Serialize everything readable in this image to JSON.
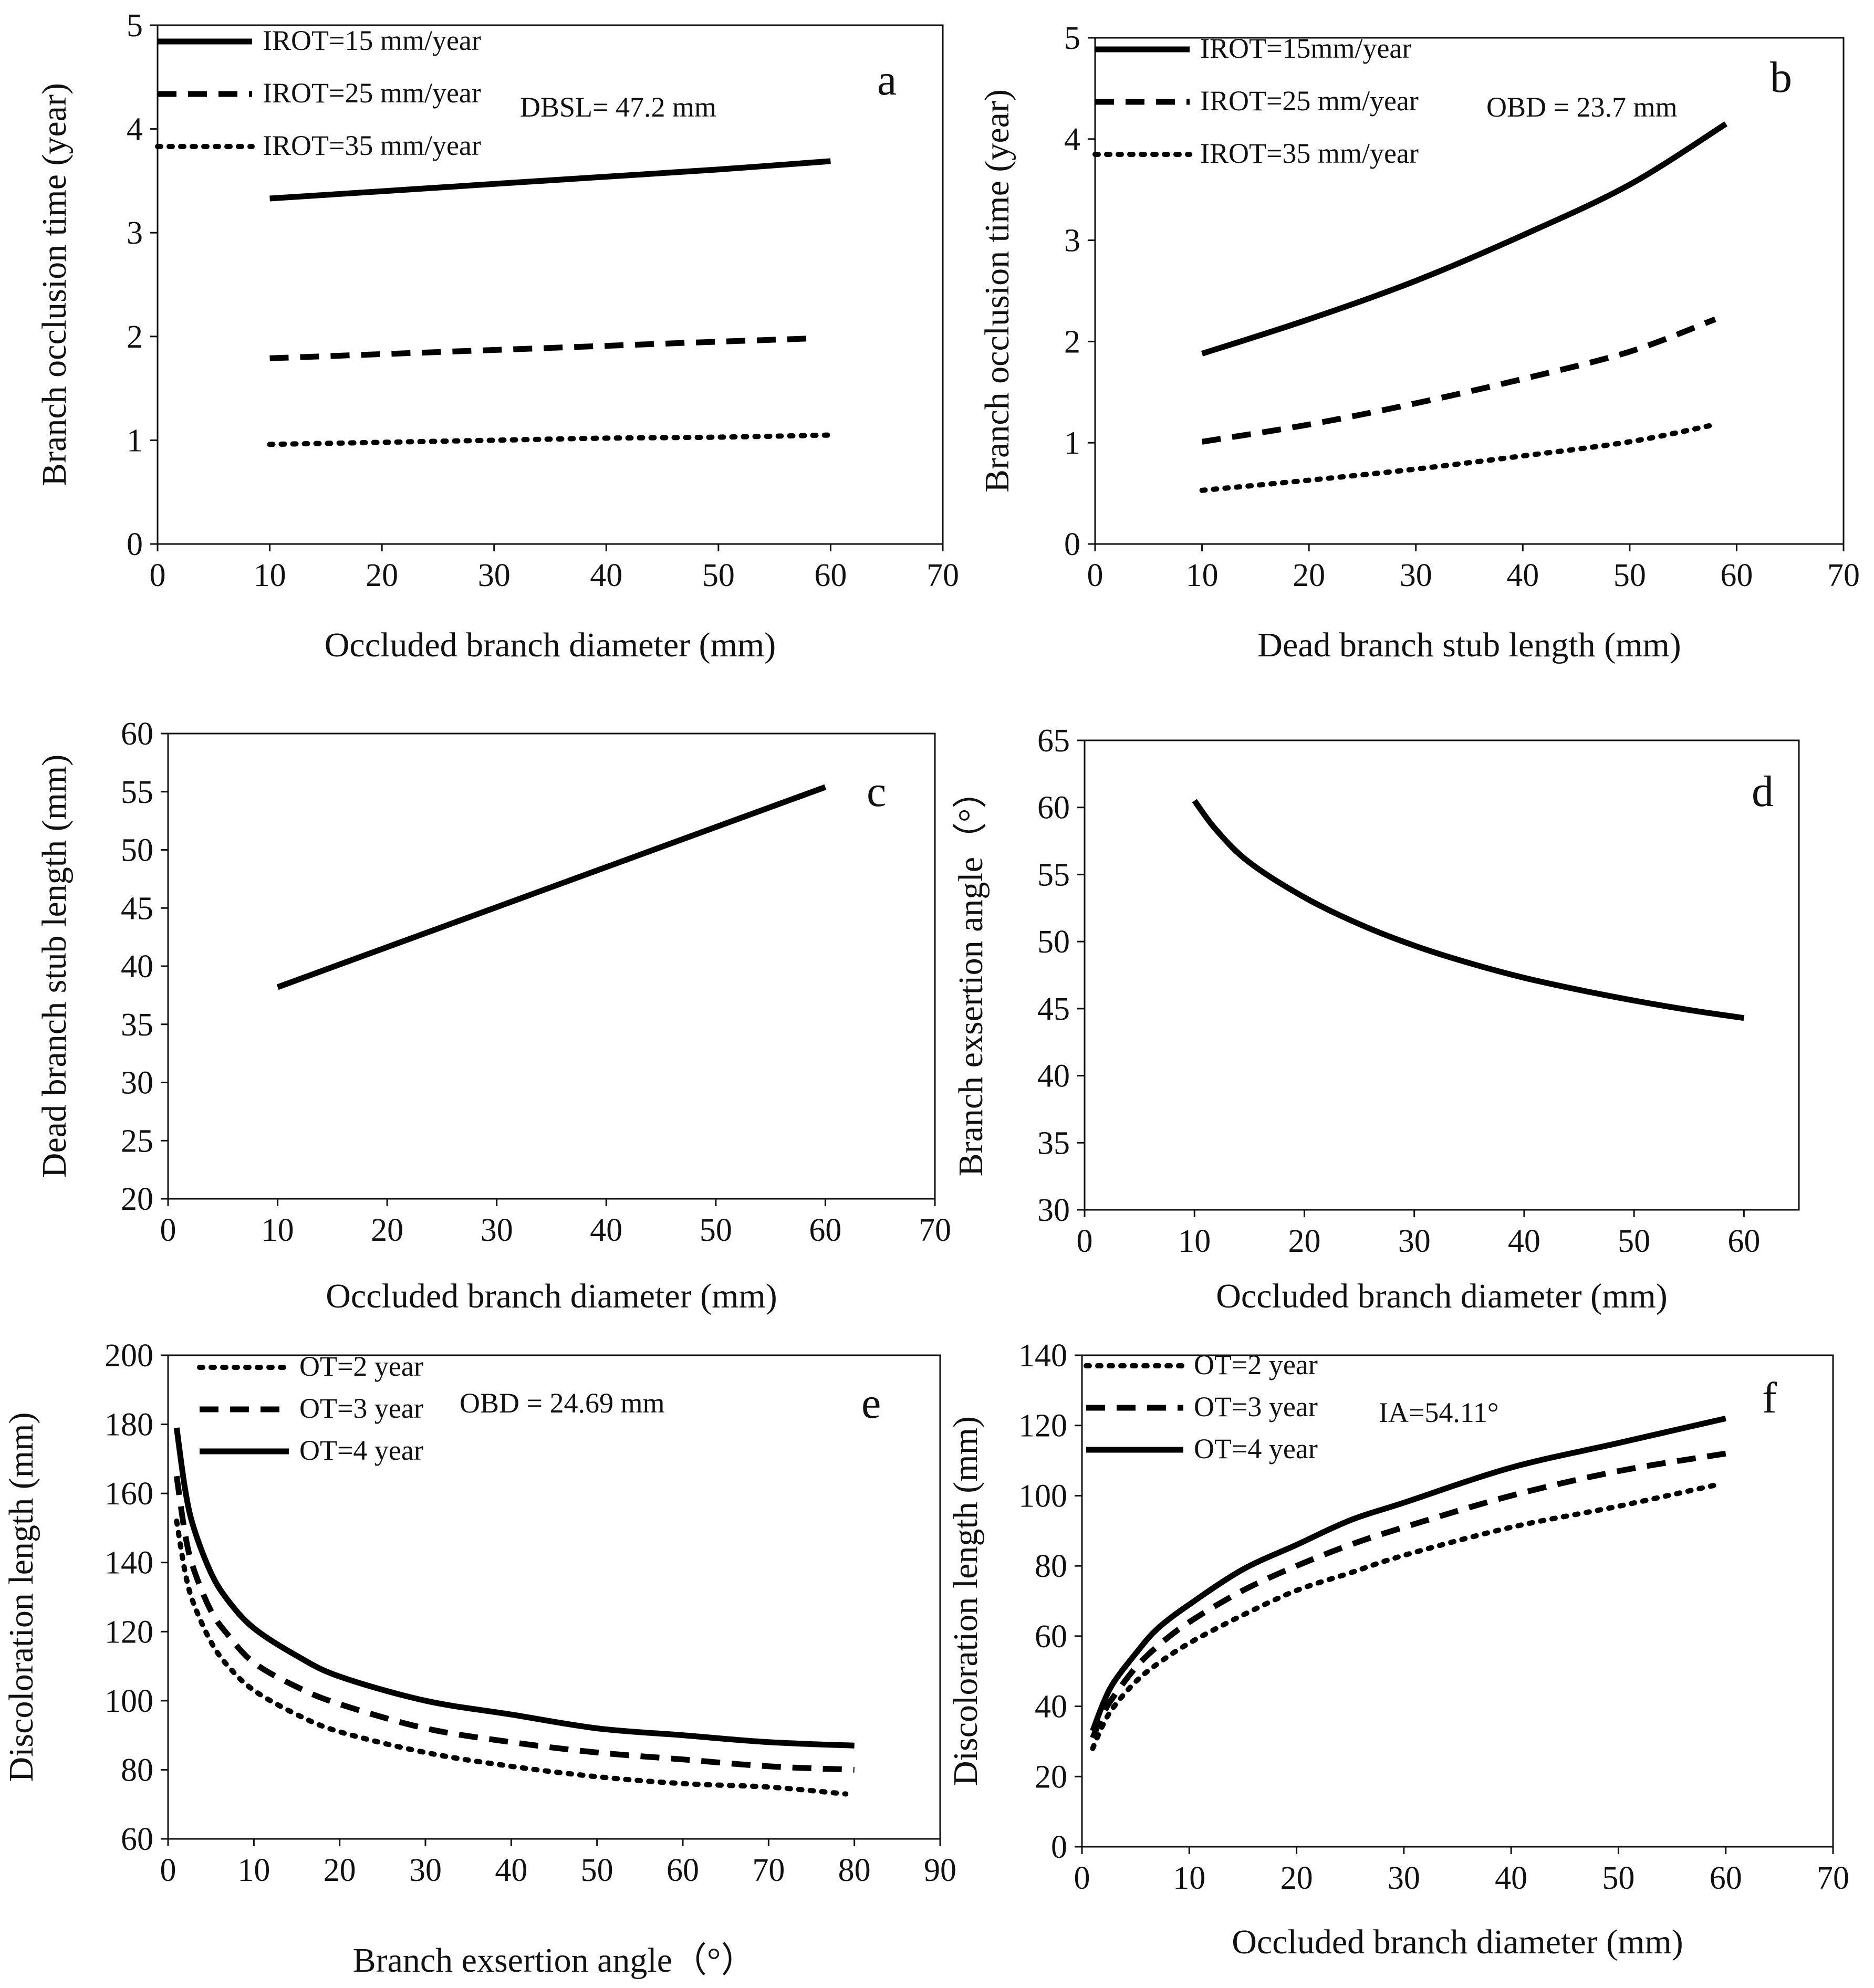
{
  "chart_data": [
    {
      "id": "a",
      "type": "line",
      "panel_label": "a",
      "xlabel": "Occluded branch diameter (mm)",
      "ylabel": "Branch occlusion time (year)",
      "xlim": [
        0,
        70
      ],
      "ylim": [
        0,
        5
      ],
      "xticks": [
        0,
        10,
        20,
        30,
        40,
        50,
        60,
        70
      ],
      "yticks": [
        0,
        1,
        2,
        3,
        4,
        5
      ],
      "annotation": "DBSL= 47.2 mm",
      "series": [
        {
          "name": "IROT=15 mm/year",
          "style": "solid",
          "x": [
            10,
            20,
            30,
            40,
            50,
            60
          ],
          "y": [
            3.33,
            3.4,
            3.47,
            3.54,
            3.61,
            3.69
          ]
        },
        {
          "name": "IROT=25 mm/year",
          "style": "dashed",
          "x": [
            10,
            20,
            30,
            40,
            50,
            58
          ],
          "y": [
            1.79,
            1.83,
            1.87,
            1.91,
            1.95,
            1.98
          ]
        },
        {
          "name": "IROT=35 mm/year",
          "style": "dotted",
          "x": [
            10,
            20,
            30,
            40,
            50,
            60
          ],
          "y": [
            0.96,
            0.98,
            1.0,
            1.02,
            1.03,
            1.05
          ]
        }
      ]
    },
    {
      "id": "b",
      "type": "line",
      "panel_label": "b",
      "xlabel": "Dead  branch stub length (mm)",
      "ylabel": "Branch occlusion time (year)",
      "xlim": [
        0,
        70
      ],
      "ylim": [
        0,
        5
      ],
      "xticks": [
        0,
        10,
        20,
        30,
        40,
        50,
        60,
        70
      ],
      "yticks": [
        0,
        1,
        2,
        3,
        4,
        5
      ],
      "annotation": "OBD = 23.7 mm",
      "series": [
        {
          "name": "IROT=15mm/year",
          "style": "solid",
          "x": [
            10,
            20,
            30,
            40,
            50,
            59
          ],
          "y": [
            1.88,
            2.22,
            2.6,
            3.05,
            3.55,
            4.15
          ]
        },
        {
          "name": "IROT=25 mm/year",
          "style": "dashed",
          "x": [
            10,
            20,
            30,
            40,
            50,
            58
          ],
          "y": [
            1.01,
            1.18,
            1.39,
            1.63,
            1.9,
            2.22
          ]
        },
        {
          "name": "IROT=35 mm/year",
          "style": "dotted",
          "x": [
            10,
            20,
            30,
            40,
            50,
            58
          ],
          "y": [
            0.53,
            0.63,
            0.74,
            0.87,
            1.01,
            1.18
          ]
        }
      ]
    },
    {
      "id": "c",
      "type": "line",
      "panel_label": "c",
      "xlabel": "Occluded  branch diameter (mm)",
      "ylabel": "Dead  branch stub length (mm)",
      "xlim": [
        0,
        70
      ],
      "ylim": [
        20,
        60
      ],
      "xticks": [
        0,
        10,
        20,
        30,
        40,
        50,
        60,
        70
      ],
      "yticks": [
        20,
        25,
        30,
        35,
        40,
        45,
        50,
        55,
        60
      ],
      "series": [
        {
          "name": "",
          "style": "solid",
          "x": [
            10,
            60
          ],
          "y": [
            38.2,
            55.4
          ]
        }
      ]
    },
    {
      "id": "d",
      "type": "line",
      "panel_label": "d",
      "xlabel": "Occluded  branch diameter (mm)",
      "ylabel": "Branch exsertion angle（°）",
      "xlim": [
        0,
        65
      ],
      "ylim": [
        30,
        65
      ],
      "xticks": [
        0,
        10,
        20,
        30,
        40,
        50,
        60
      ],
      "yticks": [
        30,
        35,
        40,
        45,
        50,
        55,
        60,
        65
      ],
      "series": [
        {
          "name": "",
          "style": "solid",
          "x": [
            10,
            12,
            15,
            20,
            25,
            30,
            35,
            40,
            45,
            50,
            55,
            60
          ],
          "y": [
            60.5,
            58.3,
            55.9,
            53.3,
            51.3,
            49.7,
            48.4,
            47.3,
            46.4,
            45.6,
            44.9,
            44.3
          ]
        }
      ]
    },
    {
      "id": "e",
      "type": "line",
      "panel_label": "e",
      "xlabel": "Branch exsertion angle（°）",
      "ylabel": "Discoloration length (mm)",
      "xlim": [
        0,
        90
      ],
      "ylim": [
        60,
        200
      ],
      "xticks": [
        0,
        10,
        20,
        30,
        40,
        50,
        60,
        70,
        80,
        90
      ],
      "yticks": [
        60,
        80,
        100,
        120,
        140,
        160,
        180,
        200
      ],
      "annotation": "OBD = 24.69 mm",
      "series": [
        {
          "name": "OT=2 year",
          "style": "dotted",
          "x": [
            1,
            2,
            3,
            5,
            7,
            10,
            15,
            20,
            30,
            40,
            50,
            60,
            70,
            79
          ],
          "y": [
            152,
            137,
            128,
            117,
            110,
            103,
            96,
            91,
            85,
            81,
            78,
            76,
            75,
            73
          ]
        },
        {
          "name": "OT=3 year",
          "style": "dashed",
          "x": [
            1,
            2,
            3,
            5,
            7,
            10,
            15,
            20,
            30,
            40,
            50,
            60,
            70,
            80
          ],
          "y": [
            165,
            148,
            138,
            126,
            119,
            111,
            104,
            99,
            92,
            88,
            85,
            83,
            81,
            80
          ]
        },
        {
          "name": "OT=4 year",
          "style": "solid",
          "x": [
            1,
            2,
            3,
            5,
            7,
            10,
            15,
            20,
            30,
            40,
            50,
            60,
            70,
            80
          ],
          "y": [
            179,
            161,
            150,
            137,
            129,
            121,
            113,
            107,
            100,
            96,
            92,
            90,
            88,
            87
          ]
        }
      ]
    },
    {
      "id": "f",
      "type": "line",
      "panel_label": "f",
      "xlabel": "Occluded  branch diameter (mm)",
      "ylabel": "Discoloration length (mm)",
      "xlim": [
        0,
        70
      ],
      "ylim": [
        0,
        140
      ],
      "xticks": [
        0,
        10,
        20,
        30,
        40,
        50,
        60,
        70
      ],
      "yticks": [
        0,
        20,
        40,
        60,
        80,
        100,
        120,
        140
      ],
      "annotation": "IA=54.11°",
      "series": [
        {
          "name": "OT=2 year",
          "style": "dotted",
          "x": [
            1,
            2,
            3,
            5,
            7,
            10,
            15,
            20,
            25,
            30,
            40,
            50,
            59
          ],
          "y": [
            28,
            35,
            40,
            47,
            52,
            58,
            66,
            73,
            78,
            83,
            91,
            97,
            103
          ]
        },
        {
          "name": "OT=3 year",
          "style": "dashed",
          "x": [
            1,
            2,
            3,
            5,
            7,
            10,
            15,
            20,
            25,
            30,
            40,
            50,
            60
          ],
          "y": [
            31,
            38,
            43,
            51,
            57,
            64,
            73,
            80,
            86,
            91,
            100,
            107,
            112
          ]
        },
        {
          "name": "OT=4 year",
          "style": "solid",
          "x": [
            1,
            2,
            3,
            5,
            7,
            10,
            15,
            20,
            25,
            30,
            40,
            50,
            60
          ],
          "y": [
            33,
            41,
            47,
            55,
            62,
            69,
            79,
            86,
            93,
            98,
            108,
            115,
            122
          ]
        }
      ]
    }
  ]
}
